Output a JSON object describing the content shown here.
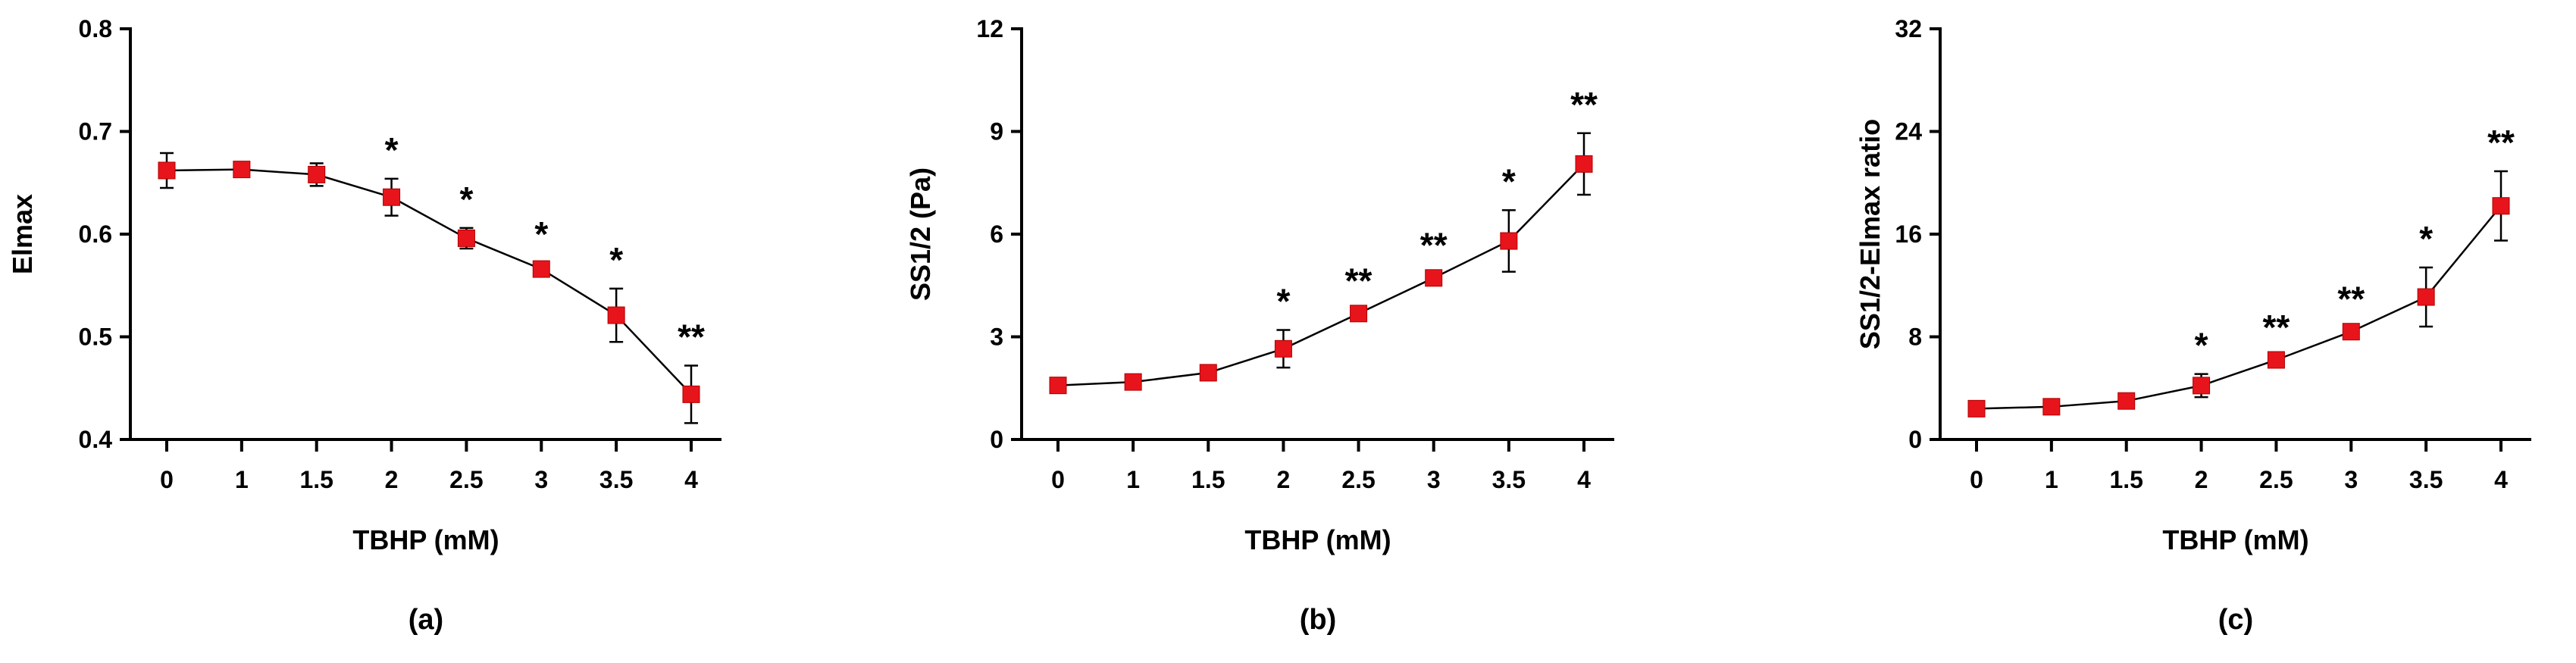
{
  "chart_data": [
    {
      "type": "line",
      "panel_label": "(a)",
      "xlabel": "TBHP (mM)",
      "ylabel": "Elmax",
      "categories": [
        "0",
        "1",
        "1.5",
        "2",
        "2.5",
        "3",
        "3.5",
        "4"
      ],
      "values": [
        0.662,
        0.663,
        0.658,
        0.636,
        0.596,
        0.566,
        0.521,
        0.444
      ],
      "errors": [
        0.017,
        0.004,
        0.011,
        0.018,
        0.01,
        0.006,
        0.026,
        0.028
      ],
      "annotations": [
        "",
        "",
        "",
        "*",
        "*",
        "*",
        "*",
        "**"
      ],
      "ylim": [
        0.4,
        0.8
      ],
      "yticks": [
        0.4,
        0.5,
        0.6,
        0.7,
        0.8
      ],
      "ytick_labels": [
        "0.4",
        "0.5",
        "0.6",
        "0.7",
        "0.8"
      ],
      "marker_color": "#e8141b",
      "grid": false
    },
    {
      "type": "line",
      "panel_label": "(b)",
      "xlabel": "TBHP (mM)",
      "ylabel": "SS1/2 (Pa)",
      "categories": [
        "0",
        "1",
        "1.5",
        "2",
        "2.5",
        "3",
        "3.5",
        "4"
      ],
      "values": [
        1.58,
        1.68,
        1.95,
        2.65,
        3.68,
        4.72,
        5.8,
        8.05
      ],
      "errors": [
        0.08,
        0.06,
        0.08,
        0.55,
        0.12,
        0.12,
        0.9,
        0.9
      ],
      "annotations": [
        "",
        "",
        "",
        "*",
        "**",
        "**",
        "*",
        "**"
      ],
      "ylim": [
        0,
        12
      ],
      "yticks": [
        0,
        3,
        6,
        9,
        12
      ],
      "ytick_labels": [
        "0",
        "3",
        "6",
        "9",
        "12"
      ],
      "marker_color": "#e8141b",
      "grid": false
    },
    {
      "type": "line",
      "panel_label": "(c)",
      "xlabel": "TBHP (mM)",
      "ylabel": "SS1/2-Elmax ratio",
      "categories": [
        "0",
        "1",
        "1.5",
        "2",
        "2.5",
        "3",
        "3.5",
        "4"
      ],
      "values": [
        2.4,
        2.55,
        3.0,
        4.2,
        6.2,
        8.4,
        11.1,
        18.2
      ],
      "errors": [
        0.15,
        0.1,
        0.15,
        0.9,
        0.3,
        0.3,
        2.3,
        2.7
      ],
      "annotations": [
        "",
        "",
        "",
        "*",
        "**",
        "**",
        "*",
        "**"
      ],
      "ylim": [
        0,
        32
      ],
      "yticks": [
        0,
        8,
        16,
        24,
        32
      ],
      "ytick_labels": [
        "0",
        "8",
        "16",
        "24",
        "32"
      ],
      "marker_color": "#e8141b",
      "grid": false
    }
  ]
}
